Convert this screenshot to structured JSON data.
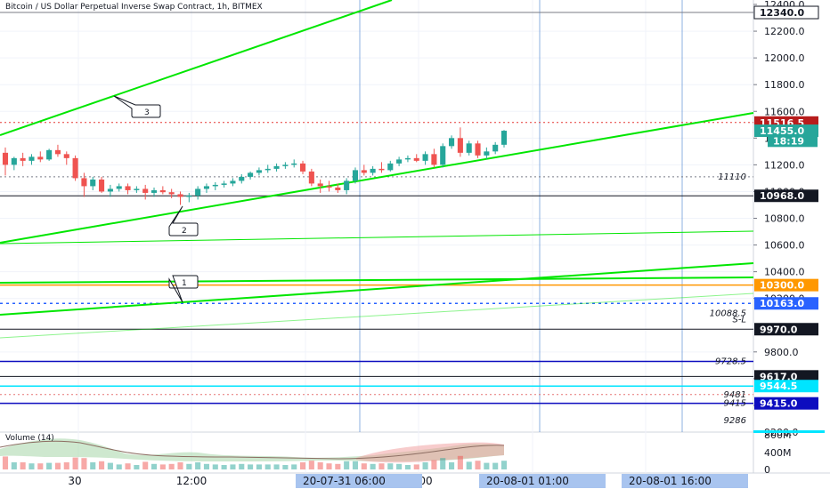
{
  "header": {
    "title": "Bitcoin / US Dollar Perpetual Inverse Swap Contract, 1h, BITMEX"
  },
  "volume_panel": {
    "label": "Volume (14)",
    "ticks": [
      "800M",
      "400M",
      "0"
    ]
  },
  "time_axis": {
    "labels": [
      "30",
      "12:00",
      "00"
    ],
    "tags": [
      "20-07-31   06:00",
      "20-08-01   01:00",
      "20-08-01   16:00"
    ]
  },
  "colors": {
    "up": "#26a69a",
    "down": "#ef5350",
    "trend": "#00e600",
    "orange": "#ff9800",
    "navy": "#1a1aff",
    "red_tag": "#b71c1c",
    "teal_tag": "#26a69a",
    "blue_tag": "#2962ff",
    "cyan_tag": "#00e5ff"
  },
  "chart_data": {
    "type": "candlestick",
    "title": "Bitcoin / US Dollar Perpetual Inverse Swap Contract, 1h, BITMEX",
    "y_ticks": [
      "12400.0",
      "12200.0",
      "12000.0",
      "11800.0",
      "11600.0",
      "11400.0",
      "11200.0",
      "11000.0",
      "10800.0",
      "10600.0",
      "10400.0",
      "10200.0",
      "9800.0",
      "9600.0",
      "9400.0",
      "9200.0"
    ],
    "ylim": [
      9200,
      12450
    ],
    "candles": [
      {
        "o": 11290,
        "h": 11330,
        "l": 11120,
        "c": 11200
      },
      {
        "o": 11200,
        "h": 11260,
        "l": 11160,
        "c": 11250
      },
      {
        "o": 11250,
        "h": 11290,
        "l": 11190,
        "c": 11230
      },
      {
        "o": 11230,
        "h": 11280,
        "l": 11200,
        "c": 11260
      },
      {
        "o": 11260,
        "h": 11300,
        "l": 11220,
        "c": 11240
      },
      {
        "o": 11240,
        "h": 11320,
        "l": 11230,
        "c": 11310
      },
      {
        "o": 11310,
        "h": 11350,
        "l": 11260,
        "c": 11280
      },
      {
        "o": 11280,
        "h": 11300,
        "l": 11200,
        "c": 11250
      },
      {
        "o": 11250,
        "h": 11270,
        "l": 11080,
        "c": 11100
      },
      {
        "o": 11100,
        "h": 11140,
        "l": 10960,
        "c": 11040
      },
      {
        "o": 11040,
        "h": 11110,
        "l": 11010,
        "c": 11090
      },
      {
        "o": 11090,
        "h": 11110,
        "l": 10990,
        "c": 11000
      },
      {
        "o": 11000,
        "h": 11050,
        "l": 10960,
        "c": 11020
      },
      {
        "o": 11020,
        "h": 11060,
        "l": 11000,
        "c": 11040
      },
      {
        "o": 11040,
        "h": 11060,
        "l": 10980,
        "c": 11010
      },
      {
        "o": 11010,
        "h": 11040,
        "l": 10990,
        "c": 11020
      },
      {
        "o": 11020,
        "h": 11050,
        "l": 10940,
        "c": 10990
      },
      {
        "o": 10990,
        "h": 11030,
        "l": 10960,
        "c": 11010
      },
      {
        "o": 11010,
        "h": 11040,
        "l": 10980,
        "c": 10995
      },
      {
        "o": 10995,
        "h": 11020,
        "l": 10950,
        "c": 10980
      },
      {
        "o": 10980,
        "h": 11000,
        "l": 10900,
        "c": 10960
      },
      {
        "o": 10960,
        "h": 10990,
        "l": 10920,
        "c": 10970
      },
      {
        "o": 10970,
        "h": 11040,
        "l": 10940,
        "c": 11020
      },
      {
        "o": 11020,
        "h": 11060,
        "l": 10990,
        "c": 11040
      },
      {
        "o": 11040,
        "h": 11070,
        "l": 11010,
        "c": 11050
      },
      {
        "o": 11050,
        "h": 11080,
        "l": 11030,
        "c": 11060
      },
      {
        "o": 11060,
        "h": 11100,
        "l": 11040,
        "c": 11080
      },
      {
        "o": 11080,
        "h": 11130,
        "l": 11060,
        "c": 11110
      },
      {
        "o": 11110,
        "h": 11150,
        "l": 11090,
        "c": 11140
      },
      {
        "o": 11140,
        "h": 11180,
        "l": 11120,
        "c": 11160
      },
      {
        "o": 11160,
        "h": 11200,
        "l": 11140,
        "c": 11170
      },
      {
        "o": 11170,
        "h": 11210,
        "l": 11150,
        "c": 11190
      },
      {
        "o": 11190,
        "h": 11220,
        "l": 11170,
        "c": 11200
      },
      {
        "o": 11200,
        "h": 11240,
        "l": 11180,
        "c": 11210
      },
      {
        "o": 11210,
        "h": 11230,
        "l": 11130,
        "c": 11150
      },
      {
        "o": 11150,
        "h": 11170,
        "l": 11040,
        "c": 11060
      },
      {
        "o": 11060,
        "h": 11090,
        "l": 10990,
        "c": 11040
      },
      {
        "o": 11040,
        "h": 11080,
        "l": 11000,
        "c": 11030
      },
      {
        "o": 11030,
        "h": 11060,
        "l": 10990,
        "c": 11010
      },
      {
        "o": 11010,
        "h": 11100,
        "l": 10980,
        "c": 11080
      },
      {
        "o": 11080,
        "h": 11180,
        "l": 11060,
        "c": 11160
      },
      {
        "o": 11160,
        "h": 11200,
        "l": 11120,
        "c": 11140
      },
      {
        "o": 11140,
        "h": 11190,
        "l": 11120,
        "c": 11170
      },
      {
        "o": 11170,
        "h": 11220,
        "l": 11140,
        "c": 11160
      },
      {
        "o": 11160,
        "h": 11230,
        "l": 11150,
        "c": 11210
      },
      {
        "o": 11210,
        "h": 11260,
        "l": 11190,
        "c": 11240
      },
      {
        "o": 11240,
        "h": 11270,
        "l": 11220,
        "c": 11250
      },
      {
        "o": 11250,
        "h": 11280,
        "l": 11220,
        "c": 11230
      },
      {
        "o": 11230,
        "h": 11300,
        "l": 11200,
        "c": 11280
      },
      {
        "o": 11280,
        "h": 11320,
        "l": 11180,
        "c": 11200
      },
      {
        "o": 11200,
        "h": 11360,
        "l": 11180,
        "c": 11340
      },
      {
        "o": 11340,
        "h": 11420,
        "l": 11320,
        "c": 11400
      },
      {
        "o": 11400,
        "h": 11480,
        "l": 11260,
        "c": 11290
      },
      {
        "o": 11290,
        "h": 11380,
        "l": 11270,
        "c": 11360
      },
      {
        "o": 11360,
        "h": 11380,
        "l": 11250,
        "c": 11270
      },
      {
        "o": 11270,
        "h": 11330,
        "l": 11240,
        "c": 11300
      },
      {
        "o": 11300,
        "h": 11370,
        "l": 11280,
        "c": 11350
      },
      {
        "o": 11350,
        "h": 11460,
        "l": 11330,
        "c": 11455
      }
    ],
    "price_tags": [
      {
        "value": 12340.0,
        "label": "12340.0",
        "style": "outline"
      },
      {
        "value": 11516.5,
        "label": "11516.5",
        "style": "red"
      },
      {
        "value": 11455.0,
        "label": "11455.0",
        "style": "teal"
      },
      {
        "value": 11380,
        "label": "18:19",
        "style": "teal"
      },
      {
        "value": 10968.0,
        "label": "10968.0",
        "style": "black"
      },
      {
        "value": 10300.0,
        "label": "10300.0",
        "style": "orange"
      },
      {
        "value": 10163.0,
        "label": "10163.0",
        "style": "blue"
      },
      {
        "value": 9970.0,
        "label": "9970.0",
        "style": "black"
      },
      {
        "value": 9617.0,
        "label": "9617.0",
        "style": "black"
      },
      {
        "value": 9544.5,
        "label": "9544.5",
        "style": "cyan"
      },
      {
        "value": 9415.0,
        "label": "9415.0",
        "style": "navy"
      }
    ],
    "annotations": [
      {
        "value": 11110,
        "label": "11110"
      },
      {
        "value": 10088.5,
        "label": "10088.5"
      },
      {
        "value": 10040,
        "label": "S-L"
      },
      {
        "value": 9728.5,
        "label": "9728.5"
      },
      {
        "value": 9481,
        "label": "9481"
      },
      {
        "value": 9415,
        "label": "9415"
      },
      {
        "value": 9286,
        "label": "9286"
      }
    ],
    "callouts": [
      "3",
      "2",
      "1"
    ]
  }
}
